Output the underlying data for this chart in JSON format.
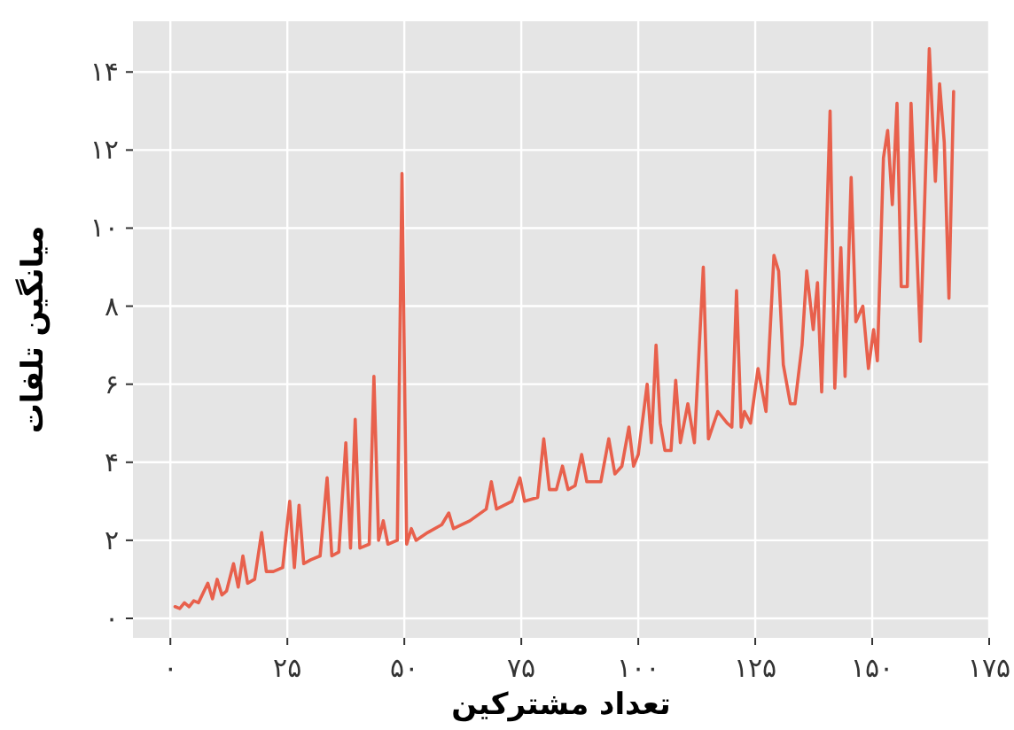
{
  "chart_data": {
    "type": "line",
    "xlabel": "تعداد مشترکین",
    "ylabel": "میانگین تلفات",
    "xlim": [
      -8,
      175
    ],
    "ylim": [
      -0.5,
      15.3
    ],
    "xticks": [
      {
        "value": 0,
        "label": "۰"
      },
      {
        "value": 25,
        "label": "۲۵"
      },
      {
        "value": 50,
        "label": "۵۰"
      },
      {
        "value": 75,
        "label": "۷۵"
      },
      {
        "value": 100,
        "label": "۱۰۰"
      },
      {
        "value": 125,
        "label": "۱۲۵"
      },
      {
        "value": 150,
        "label": "۱۵۰"
      },
      {
        "value": 175,
        "label": "۱۷۵"
      }
    ],
    "yticks": [
      {
        "value": 0,
        "label": "۰"
      },
      {
        "value": 2,
        "label": "۲"
      },
      {
        "value": 4,
        "label": "۴"
      },
      {
        "value": 6,
        "label": "۶"
      },
      {
        "value": 8,
        "label": "۸"
      },
      {
        "value": 10,
        "label": "۱۰"
      },
      {
        "value": 12,
        "label": "۱۲"
      },
      {
        "value": 14,
        "label": "۱۴"
      }
    ],
    "grid": true,
    "series": [
      {
        "color": "#e8604c",
        "x": [
          1,
          2,
          3,
          4,
          5,
          6,
          8,
          9,
          10,
          11,
          12,
          13.5,
          14.5,
          15.5,
          16.5,
          18,
          19.5,
          20.5,
          22,
          24,
          25.5,
          26.5,
          27.5,
          28.5,
          30,
          32,
          33.5,
          34.5,
          36,
          37.5,
          38.5,
          39.5,
          40.5,
          42.5,
          43.5,
          44.5,
          45.5,
          46.5,
          48.5,
          49.5,
          50.5,
          51.5,
          52.5,
          55,
          58,
          59.5,
          60.5,
          64,
          67.5,
          68.6,
          69.7,
          73,
          74.7,
          75.7,
          78.5,
          79.8,
          81,
          82.5,
          83.8,
          85,
          86.5,
          87.9,
          89,
          92,
          93.7,
          95,
          96.5,
          98,
          99,
          100,
          101.9,
          102.8,
          103.8,
          104.7,
          105.7,
          107,
          108,
          109,
          110.6,
          112,
          113.9,
          115,
          117,
          119,
          120,
          121,
          122,
          122.7,
          124,
          125.6,
          127.3,
          129,
          130,
          131,
          132.5,
          133.5,
          135,
          136,
          137.4,
          138.3,
          139.2,
          141,
          142,
          143.3,
          144.2,
          145.5,
          146.5,
          148,
          149.2,
          150.3,
          151.1,
          152.4,
          153.3,
          154.3,
          155.3,
          156.2,
          157.5,
          158.3,
          160.3,
          162.2,
          163.5,
          164.4,
          165.4,
          166.4,
          167.4
        ],
        "values": [
          0.3,
          0.25,
          0.4,
          0.3,
          0.45,
          0.4,
          0.9,
          0.5,
          1.0,
          0.6,
          0.7,
          1.4,
          0.8,
          1.6,
          0.9,
          1.0,
          2.2,
          1.2,
          1.2,
          1.3,
          3.0,
          1.3,
          2.9,
          1.4,
          1.5,
          1.6,
          3.6,
          1.6,
          1.7,
          4.5,
          1.8,
          5.1,
          1.8,
          1.9,
          6.2,
          2.0,
          2.5,
          1.9,
          2.0,
          11.4,
          1.9,
          2.3,
          2.0,
          2.2,
          2.4,
          2.7,
          2.3,
          2.5,
          2.8,
          3.5,
          2.8,
          3.0,
          3.6,
          3.0,
          3.1,
          4.6,
          3.3,
          3.3,
          3.9,
          3.3,
          3.4,
          4.2,
          3.5,
          3.5,
          4.6,
          3.7,
          3.9,
          4.9,
          3.9,
          4.2,
          6.0,
          4.5,
          7.0,
          5.0,
          4.3,
          4.3,
          6.1,
          4.5,
          5.5,
          4.5,
          9.0,
          4.6,
          5.3,
          5.0,
          4.9,
          8.4,
          4.9,
          5.3,
          5.0,
          6.4,
          5.3,
          9.3,
          8.9,
          6.5,
          5.5,
          5.5,
          7.0,
          8.9,
          7.4,
          8.6,
          5.8,
          13.0,
          5.9,
          9.5,
          6.2,
          11.3,
          7.6,
          8.0,
          6.4,
          7.4,
          6.6,
          11.8,
          12.5,
          10.6,
          13.2,
          8.5,
          8.5,
          13.2,
          7.1,
          14.6,
          11.2,
          13.7,
          12.2,
          8.2,
          13.5
        ]
      }
    ]
  }
}
